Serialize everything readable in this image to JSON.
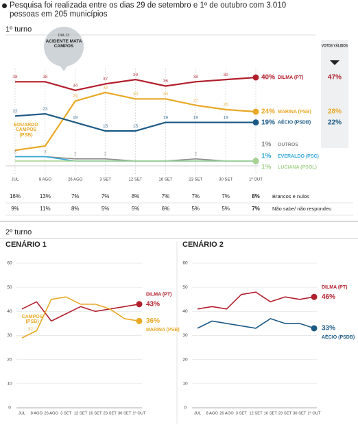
{
  "note": "Pesquisa foi realizada entre os dias 29 de setembro e 1º de outubro com 3.010 pessoas em 205 municípios",
  "second_round_title": "2º turno",
  "chart_data": [
    {
      "type": "line",
      "title": "1º turno",
      "categories": [
        "JUL",
        "8 AGO",
        "26 AGO",
        "3 SET",
        "12 SET",
        "16 SET",
        "23 SET",
        "30 SET",
        "1º OUT"
      ],
      "ylim": [
        0,
        40
      ],
      "valid_votes_title": "VOTOS VÁLIDOS",
      "series": [
        {
          "name": "DILMA (PT)",
          "color": "#b21f2d",
          "values": [
            38,
            38,
            34,
            37,
            39,
            36,
            38,
            39,
            40
          ],
          "value_labels": [
            "38",
            "38",
            "34",
            "37",
            "39",
            "36",
            "38",
            "39",
            "40%"
          ],
          "valid_votes": "47%"
        },
        {
          "name": "MARINA (PSB)",
          "color": "#e9a825",
          "values": [
            6,
            8,
            29,
            33,
            30,
            30,
            27,
            25,
            24
          ],
          "value_labels": [
            null,
            null,
            "29",
            "33",
            "30",
            "30",
            "27",
            "25",
            "24%"
          ],
          "valid_votes": "28%"
        },
        {
          "name": "AÉCIO (PSDB)",
          "color": "#1c5a86",
          "values": [
            22,
            23,
            19,
            15,
            15,
            19,
            19,
            19,
            19
          ],
          "value_labels": [
            "22",
            "23",
            "19",
            "15",
            "15",
            "19",
            "19",
            "19",
            "19%"
          ],
          "valid_votes": "22%"
        },
        {
          "name": "OUTROS",
          "color": "#8a8a8a",
          "values": [
            3,
            3,
            2,
            2,
            1,
            1,
            2,
            1,
            1
          ],
          "value_labels": [
            "3",
            "3",
            "2",
            "2",
            null,
            null,
            "2",
            null,
            "1%"
          ]
        },
        {
          "name": "EVERALDO (PSC)",
          "color": "#35a9d8",
          "values": [
            3,
            3,
            1,
            1,
            1,
            1,
            1,
            1,
            1
          ],
          "value_labels": [
            null,
            null,
            null,
            null,
            null,
            null,
            null,
            null,
            "1%"
          ]
        },
        {
          "name": "LUCIANA (PSOL)",
          "color": "#a6d38f",
          "values": [
            1,
            1,
            1,
            1,
            1,
            1,
            1,
            1,
            1
          ],
          "value_labels": [
            null,
            null,
            null,
            null,
            null,
            null,
            null,
            null,
            "1%"
          ]
        }
      ],
      "annotations": [
        "DIA 13",
        "ACIDENTE MATA CAMPOS",
        "EDUARDO CAMPOS (PSB)"
      ],
      "table": [
        {
          "label": "Brancos e nulos",
          "values": [
            "16%",
            "13%",
            "7%",
            "7%",
            "8%",
            "7%",
            "7%",
            "7%",
            "8%"
          ]
        },
        {
          "label": "Não sabe/ não respondeu",
          "values": [
            "9%",
            "11%",
            "8%",
            "5%",
            "5%",
            "6%",
            "5%",
            "5%",
            "7%"
          ]
        }
      ]
    },
    {
      "type": "line",
      "title": "CENÁRIO 1",
      "categories": [
        "JUL",
        "8 AGO",
        "26 AGO",
        "3 SET",
        "12 SET",
        "16 SET",
        "23 SET",
        "30 SET",
        "1º OUT"
      ],
      "ylim": [
        0,
        60
      ],
      "yticks": [
        0,
        10,
        20,
        30,
        40,
        50,
        60
      ],
      "grid": true,
      "series": [
        {
          "name": "DILMA (PT)",
          "color": "#b21f2d",
          "values": [
            41,
            44,
            36,
            39,
            42,
            40,
            41,
            42,
            43
          ],
          "value_labels": [
            null,
            null,
            null,
            null,
            null,
            null,
            null,
            null,
            "43%"
          ]
        },
        {
          "name": "MARINA (PSB)",
          "color": "#e9a825",
          "values": [
            29,
            32,
            45,
            46,
            43,
            43,
            41,
            37,
            36
          ],
          "value_labels": [
            null,
            "32",
            null,
            null,
            null,
            null,
            null,
            null,
            "36%"
          ]
        }
      ],
      "annotations": [
        "CAMPOS (PSB)"
      ]
    },
    {
      "type": "line",
      "title": "CENÁRIO 2",
      "categories": [
        "JUL",
        "8 AGO",
        "26 AGO",
        "3 SET",
        "12 SET",
        "16 SET",
        "23 SET",
        "30 SET",
        "1º OUT"
      ],
      "ylim": [
        0,
        60
      ],
      "yticks": [
        0,
        10,
        20,
        30,
        40,
        50,
        60
      ],
      "grid": true,
      "series": [
        {
          "name": "DILMA (PT)",
          "color": "#b21f2d",
          "values": [
            41,
            42,
            41,
            47,
            48,
            44,
            46,
            45,
            46
          ],
          "value_labels": [
            null,
            null,
            null,
            null,
            null,
            null,
            null,
            null,
            "46%"
          ]
        },
        {
          "name": "AÉCIO (PSDB)",
          "color": "#1c5a86",
          "values": [
            33,
            36,
            35,
            34,
            33,
            37,
            35,
            35,
            33
          ],
          "value_labels": [
            null,
            null,
            null,
            null,
            null,
            null,
            null,
            null,
            "33%"
          ]
        }
      ]
    }
  ]
}
